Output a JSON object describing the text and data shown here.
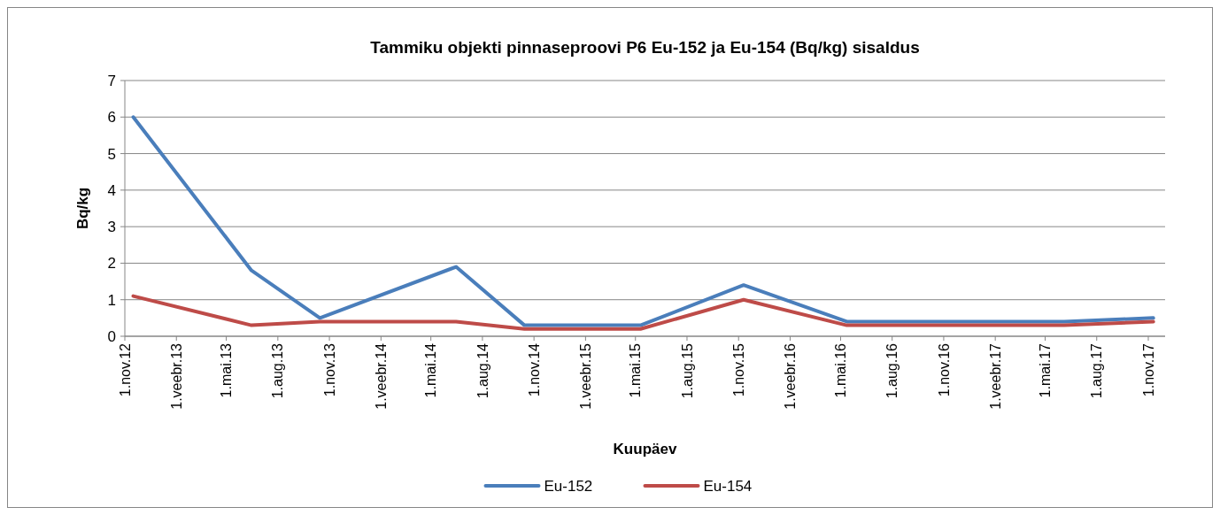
{
  "chart_data": {
    "type": "line",
    "title": "Tammiku objekti pinnaseproovi P6 Eu-152 ja Eu-154 (Bq/kg) sisaldus",
    "xlabel": "Kuupäev",
    "ylabel": "Bq/kg",
    "x": [
      "2012-11-16",
      "2013-06-15",
      "2013-10-15",
      "2014-06-15",
      "2014-10-15",
      "2015-05-10",
      "2015-11-10",
      "2016-05-12",
      "2017-06-04",
      "2017-11-10"
    ],
    "series": [
      {
        "name": "Eu-152",
        "color": "#4a7ebb",
        "values": [
          6.0,
          1.8,
          0.5,
          1.9,
          0.3,
          0.3,
          1.4,
          0.4,
          0.4,
          0.5
        ]
      },
      {
        "name": "Eu-154",
        "color": "#be4b48",
        "values": [
          1.1,
          0.3,
          0.4,
          0.4,
          0.2,
          0.2,
          1.0,
          0.3,
          0.3,
          0.4
        ]
      }
    ],
    "xlim": [
      "2012-11-01",
      "2017-12-01"
    ],
    "xticks": [
      {
        "value": "2012-11-01",
        "label": "1.nov.12"
      },
      {
        "value": "2013-02-01",
        "label": "1.veebr.13"
      },
      {
        "value": "2013-05-01",
        "label": "1.mai.13"
      },
      {
        "value": "2013-08-01",
        "label": "1.aug.13"
      },
      {
        "value": "2013-11-01",
        "label": "1.nov.13"
      },
      {
        "value": "2014-02-01",
        "label": "1.veebr.14"
      },
      {
        "value": "2014-05-01",
        "label": "1.mai.14"
      },
      {
        "value": "2014-08-01",
        "label": "1.aug.14"
      },
      {
        "value": "2014-11-01",
        "label": "1.nov.14"
      },
      {
        "value": "2015-02-01",
        "label": "1.veebr.15"
      },
      {
        "value": "2015-05-01",
        "label": "1.mai.15"
      },
      {
        "value": "2015-08-01",
        "label": "1.aug.15"
      },
      {
        "value": "2015-11-01",
        "label": "1.nov.15"
      },
      {
        "value": "2016-02-01",
        "label": "1.veebr.16"
      },
      {
        "value": "2016-05-01",
        "label": "1.mai.16"
      },
      {
        "value": "2016-08-01",
        "label": "1.aug.16"
      },
      {
        "value": "2016-11-01",
        "label": "1.nov.16"
      },
      {
        "value": "2017-02-01",
        "label": "1.veebr.17"
      },
      {
        "value": "2017-05-01",
        "label": "1.mai.17"
      },
      {
        "value": "2017-08-01",
        "label": "1.aug.17"
      },
      {
        "value": "2017-11-01",
        "label": "1.nov.17"
      }
    ],
    "ylim": [
      0,
      7
    ],
    "yticks": [
      0,
      1,
      2,
      3,
      4,
      5,
      6,
      7
    ],
    "grid": "y",
    "legend": "bottom",
    "marker": "none",
    "line_style": "solid"
  }
}
